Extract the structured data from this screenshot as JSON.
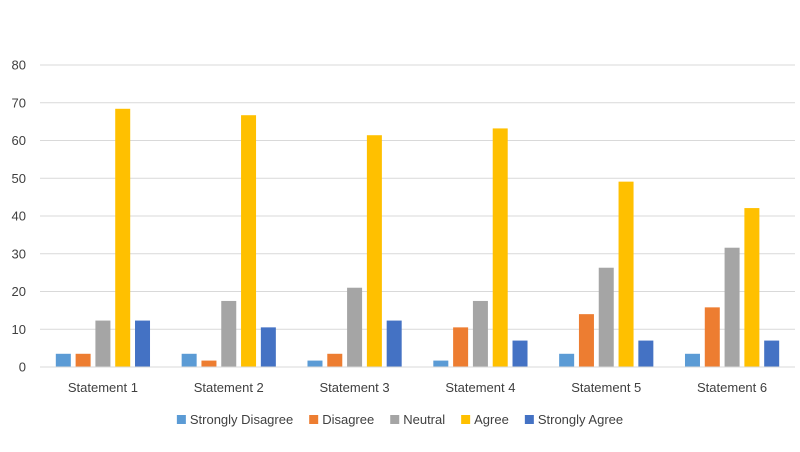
{
  "chart_data": {
    "type": "bar",
    "title": "",
    "xlabel": "",
    "ylabel": "",
    "ylim": [
      0,
      80
    ],
    "yticks": [
      0,
      10,
      20,
      30,
      40,
      50,
      60,
      70,
      80
    ],
    "grid": true,
    "legend_position": "bottom",
    "categories": [
      "Statement 1",
      "Statement 2",
      "Statement 3",
      "Statement 4",
      "Statement 5",
      "Statement 6"
    ],
    "series": [
      {
        "name": "Strongly Disagree",
        "color": "#5B9BD5",
        "values": [
          3.5,
          3.5,
          1.7,
          1.7,
          3.5,
          3.5
        ]
      },
      {
        "name": "Disagree",
        "color": "#ED7D31",
        "values": [
          3.5,
          1.7,
          3.5,
          10.5,
          14,
          15.8
        ]
      },
      {
        "name": "Neutral",
        "color": "#A5A5A5",
        "values": [
          12.3,
          17.5,
          21,
          17.5,
          26.3,
          31.6
        ]
      },
      {
        "name": "Agree",
        "color": "#FFC000",
        "values": [
          68.4,
          66.7,
          61.4,
          63.2,
          49.1,
          42.1
        ]
      },
      {
        "name": "Strongly Agree",
        "color": "#4472C4",
        "values": [
          12.3,
          10.5,
          12.3,
          7,
          7,
          7
        ]
      }
    ]
  }
}
